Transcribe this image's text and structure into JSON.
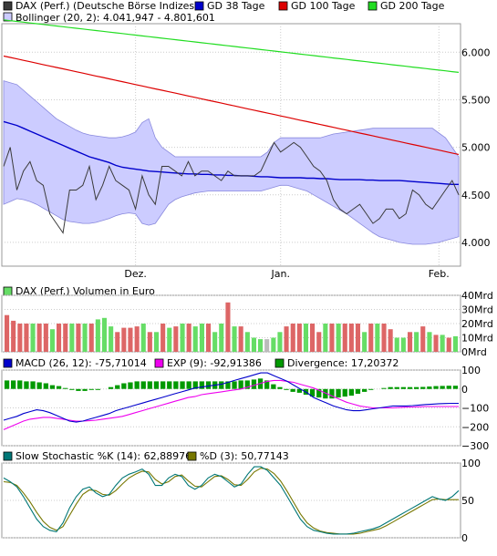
{
  "colors": {
    "dax": "#3a3a3a",
    "gd38": "#0000cc",
    "gd100": "#dd0000",
    "gd200": "#22dd22",
    "bollinger_fill": "#ccccff",
    "bollinger_line": "#8888dd",
    "vol_up": "#66dd66",
    "vol_down": "#dd6666",
    "vol_neutral": "#bbbbbb",
    "macd": "#0000cc",
    "exp": "#ee00ee",
    "divergence": "#009900",
    "stoch_k": "#007777",
    "stoch_d": "#777700",
    "grid": "#cccccc",
    "panel_bg": "#ffffff",
    "header_bg": "#e0e0e0"
  },
  "price_panel": {
    "legend": [
      {
        "label": "DAX (Perf.) (Deutsche Börse Indizes)",
        "color_key": "dax"
      },
      {
        "label": "GD 38 Tage",
        "color_key": "gd38"
      },
      {
        "label": "GD 100 Tage",
        "color_key": "gd100"
      },
      {
        "label": "GD 200 Tage",
        "color_key": "gd200"
      },
      {
        "label": "Bollinger (20, 2): 4.041,947 - 4.801,601",
        "color_key": "bollinger_fill"
      }
    ],
    "y_ticks": [
      "6.000",
      "5.500",
      "5.000",
      "4.500",
      "4.000"
    ],
    "x_ticks": [
      "Dez.",
      "Jan.",
      "Feb."
    ]
  },
  "volume_panel": {
    "legend": [
      {
        "label": "DAX (Perf.) Volumen in Euro",
        "color_key": "vol_up"
      }
    ],
    "y_ticks": [
      "40Mrd",
      "30Mrd",
      "20Mrd",
      "10Mrd",
      "0Mrd"
    ]
  },
  "macd_panel": {
    "legend": [
      {
        "label": "MACD (26, 12): -75,71014",
        "color_key": "macd"
      },
      {
        "label": "EXP (9): -92,91386",
        "color_key": "exp"
      },
      {
        "label": "Divergence: 17,20372",
        "color_key": "divergence"
      }
    ],
    "y_ticks": [
      "100",
      "0",
      "−100",
      "−200",
      "−300"
    ]
  },
  "stoch_panel": {
    "legend": [
      {
        "label": "Slow Stochastic %K (14): 62,88976",
        "color_key": "stoch_k"
      },
      {
        "label": "%D (3): 50,77143",
        "color_key": "stoch_d"
      }
    ],
    "y_ticks": [
      "100",
      "50",
      "0"
    ]
  },
  "chart_data": [
    {
      "type": "line",
      "x_range": [
        0,
        69
      ],
      "x_ticks": [
        {
          "label": "Dez.",
          "x": 20
        },
        {
          "label": "Jan.",
          "x": 42
        },
        {
          "label": "Feb.",
          "x": 66
        }
      ],
      "ylim": [
        3750,
        6300
      ],
      "y_ticks": [
        4000,
        4500,
        5000,
        5500,
        6000
      ],
      "series": [
        {
          "name": "DAX (Perf.) (Deutsche Börse Indizes)",
          "color_key": "dax",
          "values": [
            4800,
            5000,
            4550,
            4750,
            4850,
            4650,
            4600,
            4300,
            4200,
            4100,
            4550,
            4550,
            4600,
            4800,
            4450,
            4600,
            4800,
            4650,
            4600,
            4550,
            4350,
            4700,
            4500,
            4400,
            4800,
            4800,
            4750,
            4700,
            4850,
            4700,
            4750,
            4750,
            4700,
            4650,
            4750,
            4700,
            4700,
            4700,
            4700,
            4750,
            4900,
            5050,
            4950,
            5000,
            5050,
            5000,
            4900,
            4800,
            4750,
            4650,
            4450,
            4350,
            4300,
            4350,
            4400,
            4300,
            4200,
            4250,
            4350,
            4350,
            4250,
            4300,
            4550,
            4500,
            4400,
            4350,
            4450,
            4550,
            4650,
            4500
          ]
        },
        {
          "name": "GD 38 Tage",
          "color_key": "gd38",
          "values": [
            5270,
            5250,
            5230,
            5200,
            5170,
            5140,
            5110,
            5080,
            5050,
            5020,
            4990,
            4960,
            4930,
            4900,
            4880,
            4860,
            4840,
            4810,
            4790,
            4780,
            4770,
            4760,
            4750,
            4745,
            4740,
            4735,
            4730,
            4725,
            4720,
            4720,
            4715,
            4715,
            4710,
            4710,
            4705,
            4705,
            4700,
            4700,
            4695,
            4690,
            4690,
            4685,
            4680,
            4680,
            4680,
            4680,
            4675,
            4675,
            4670,
            4670,
            4665,
            4660,
            4660,
            4660,
            4660,
            4655,
            4655,
            4650,
            4650,
            4650,
            4650,
            4645,
            4640,
            4635,
            4630,
            4625,
            4620,
            4615,
            4610,
            4610
          ]
        },
        {
          "name": "GD 100 Tage",
          "color_key": "gd100",
          "values": [
            5960,
            5945,
            5930,
            5915,
            5900,
            5885,
            5870,
            5855,
            5840,
            5825,
            5810,
            5795,
            5780,
            5765,
            5750,
            5735,
            5720,
            5705,
            5690,
            5675,
            5660,
            5645,
            5630,
            5615,
            5600,
            5585,
            5570,
            5555,
            5540,
            5525,
            5510,
            5495,
            5480,
            5465,
            5450,
            5435,
            5420,
            5405,
            5390,
            5375,
            5360,
            5345,
            5330,
            5315,
            5300,
            5285,
            5270,
            5255,
            5240,
            5225,
            5210,
            5195,
            5180,
            5165,
            5150,
            5135,
            5120,
            5105,
            5090,
            5075,
            5060,
            5045,
            5030,
            5015,
            5000,
            4985,
            4970,
            4955,
            4940,
            4925
          ]
        },
        {
          "name": "GD 200 Tage",
          "color_key": "gd200",
          "values": [
            6340,
            6332,
            6324,
            6316,
            6308,
            6300,
            6292,
            6284,
            6276,
            6268,
            6260,
            6252,
            6244,
            6236,
            6228,
            6220,
            6212,
            6204,
            6196,
            6188,
            6180,
            6172,
            6164,
            6156,
            6148,
            6140,
            6132,
            6124,
            6116,
            6108,
            6100,
            6092,
            6084,
            6076,
            6068,
            6060,
            6052,
            6044,
            6036,
            6028,
            6020,
            6012,
            6004,
            5996,
            5988,
            5980,
            5972,
            5964,
            5956,
            5948,
            5940,
            5932,
            5924,
            5916,
            5908,
            5900,
            5892,
            5884,
            5876,
            5868,
            5860,
            5852,
            5844,
            5836,
            5828,
            5820,
            5812,
            5804,
            5796,
            5788
          ]
        }
      ],
      "bands": {
        "name": "Bollinger (20, 2)",
        "upper": [
          5700,
          5680,
          5660,
          5600,
          5540,
          5480,
          5420,
          5360,
          5300,
          5260,
          5220,
          5180,
          5150,
          5130,
          5120,
          5110,
          5100,
          5100,
          5110,
          5130,
          5160,
          5260,
          5300,
          5100,
          5000,
          4950,
          4900,
          4900,
          4900,
          4900,
          4900,
          4900,
          4900,
          4900,
          4900,
          4900,
          4900,
          4900,
          4900,
          4900,
          4950,
          5050,
          5100,
          5100,
          5100,
          5100,
          5100,
          5100,
          5100,
          5120,
          5140,
          5150,
          5160,
          5170,
          5180,
          5190,
          5200,
          5200,
          5200,
          5200,
          5200,
          5200,
          5200,
          5200,
          5200,
          5200,
          5150,
          5100,
          5000,
          4900
        ],
        "lower": [
          4400,
          4430,
          4460,
          4450,
          4430,
          4400,
          4360,
          4320,
          4280,
          4240,
          4220,
          4210,
          4200,
          4200,
          4210,
          4230,
          4250,
          4280,
          4300,
          4310,
          4300,
          4200,
          4180,
          4200,
          4300,
          4400,
          4450,
          4480,
          4500,
          4520,
          4530,
          4540,
          4540,
          4540,
          4540,
          4540,
          4540,
          4540,
          4540,
          4540,
          4560,
          4580,
          4600,
          4600,
          4580,
          4560,
          4540,
          4500,
          4460,
          4420,
          4380,
          4340,
          4300,
          4250,
          4200,
          4150,
          4100,
          4060,
          4040,
          4020,
          4000,
          3990,
          3980,
          3980,
          3980,
          3990,
          4000,
          4020,
          4040,
          4060
        ]
      }
    },
    {
      "type": "bar",
      "ylim": [
        0,
        40
      ],
      "y_ticks": [
        0,
        10,
        20,
        30,
        40
      ],
      "unit": "Mrd",
      "values": [
        26,
        22,
        20,
        20,
        20,
        20,
        20,
        16,
        20,
        20,
        20,
        20,
        20,
        20,
        23,
        24,
        18,
        14,
        17,
        17,
        18,
        20,
        14,
        14,
        20,
        17,
        18,
        20,
        20,
        18,
        20,
        20,
        14,
        20,
        35,
        18,
        18,
        14,
        10,
        9,
        9,
        10,
        14,
        18,
        20,
        20,
        20,
        20,
        14,
        20,
        20,
        20,
        20,
        20,
        20,
        14,
        20,
        20,
        20,
        16,
        10,
        10,
        14,
        14,
        18,
        14,
        12,
        12,
        10,
        11
      ],
      "directions": [
        "d",
        "d",
        "d",
        "d",
        "u",
        "d",
        "d",
        "u",
        "d",
        "d",
        "u",
        "d",
        "u",
        "d",
        "u",
        "u",
        "u",
        "d",
        "d",
        "d",
        "d",
        "u",
        "d",
        "u",
        "d",
        "u",
        "d",
        "u",
        "d",
        "u",
        "u",
        "d",
        "u",
        "u",
        "d",
        "u",
        "d",
        "u",
        "u",
        "u",
        "n",
        "u",
        "u",
        "d",
        "d",
        "d",
        "u",
        "d",
        "d",
        "u",
        "d",
        "u",
        "d",
        "d",
        "d",
        "u",
        "d",
        "u",
        "d",
        "d",
        "u",
        "u",
        "d",
        "u",
        "d",
        "u",
        "d",
        "u",
        "d",
        "u"
      ]
    },
    {
      "type": "line",
      "ylim": [
        -300,
        100
      ],
      "y_ticks": [
        -300,
        -200,
        -100,
        0,
        100
      ],
      "series": [
        {
          "name": "MACD (26, 12)",
          "color_key": "macd",
          "values": [
            -165,
            -155,
            -145,
            -130,
            -120,
            -110,
            -115,
            -125,
            -140,
            -155,
            -170,
            -175,
            -170,
            -160,
            -150,
            -140,
            -130,
            -115,
            -105,
            -95,
            -85,
            -75,
            -65,
            -55,
            -45,
            -35,
            -25,
            -15,
            -5,
            5,
            10,
            15,
            20,
            25,
            35,
            45,
            55,
            65,
            75,
            85,
            85,
            70,
            55,
            40,
            20,
            0,
            -20,
            -45,
            -60,
            -75,
            -90,
            -100,
            -110,
            -115,
            -115,
            -110,
            -105,
            -100,
            -95,
            -90,
            -90,
            -90,
            -88,
            -85,
            -82,
            -80,
            -78,
            -77,
            -76,
            -76
          ]
        },
        {
          "name": "EXP (9)",
          "color_key": "exp",
          "values": [
            -215,
            -200,
            -185,
            -170,
            -160,
            -155,
            -150,
            -150,
            -155,
            -160,
            -165,
            -170,
            -170,
            -168,
            -165,
            -160,
            -155,
            -150,
            -145,
            -135,
            -125,
            -115,
            -105,
            -95,
            -85,
            -75,
            -65,
            -55,
            -45,
            -40,
            -30,
            -25,
            -20,
            -15,
            -10,
            -5,
            0,
            10,
            20,
            30,
            40,
            45,
            45,
            40,
            35,
            25,
            15,
            5,
            -10,
            -25,
            -40,
            -55,
            -70,
            -80,
            -90,
            -95,
            -100,
            -100,
            -100,
            -100,
            -98,
            -96,
            -95,
            -94,
            -93,
            -93,
            -93,
            -93,
            -93,
            -93
          ]
        }
      ],
      "divergence": [
        45,
        45,
        45,
        40,
        40,
        35,
        30,
        20,
        15,
        5,
        -5,
        -10,
        -10,
        -5,
        -5,
        0,
        10,
        20,
        30,
        35,
        40,
        40,
        40,
        40,
        40,
        40,
        40,
        40,
        40,
        40,
        40,
        40,
        40,
        40,
        40,
        40,
        45,
        45,
        50,
        55,
        45,
        25,
        10,
        -5,
        -15,
        -20,
        -30,
        -40,
        -45,
        -50,
        -50,
        -45,
        -40,
        -35,
        -25,
        -15,
        -5,
        0,
        5,
        10,
        10,
        10,
        10,
        10,
        11,
        13,
        15,
        16,
        17,
        17
      ]
    },
    {
      "type": "line",
      "ylim": [
        0,
        100
      ],
      "y_ticks": [
        0,
        50,
        100
      ],
      "series": [
        {
          "name": "Slow Stochastic %K (14)",
          "color_key": "stoch_k",
          "values": [
            80,
            75,
            68,
            55,
            40,
            25,
            15,
            10,
            8,
            20,
            40,
            55,
            65,
            68,
            60,
            55,
            58,
            70,
            80,
            85,
            88,
            92,
            85,
            70,
            70,
            80,
            85,
            82,
            70,
            65,
            70,
            80,
            85,
            82,
            75,
            68,
            72,
            85,
            95,
            95,
            90,
            80,
            70,
            55,
            40,
            25,
            15,
            10,
            8,
            6,
            5,
            5,
            5,
            6,
            8,
            10,
            12,
            15,
            20,
            25,
            30,
            35,
            40,
            45,
            50,
            55,
            52,
            50,
            55,
            63
          ]
        },
        {
          "name": "%D (3)",
          "color_key": "stoch_d",
          "values": [
            75,
            74,
            70,
            60,
            48,
            34,
            22,
            14,
            10,
            15,
            30,
            45,
            58,
            64,
            63,
            58,
            57,
            63,
            72,
            80,
            85,
            89,
            88,
            78,
            72,
            75,
            82,
            84,
            76,
            69,
            68,
            75,
            82,
            83,
            78,
            71,
            70,
            78,
            88,
            93,
            92,
            86,
            76,
            62,
            47,
            32,
            20,
            13,
            9,
            7,
            6,
            5,
            5,
            5,
            6,
            8,
            10,
            12,
            16,
            21,
            26,
            31,
            36,
            41,
            46,
            51,
            52,
            51,
            51,
            51
          ]
        }
      ]
    }
  ]
}
